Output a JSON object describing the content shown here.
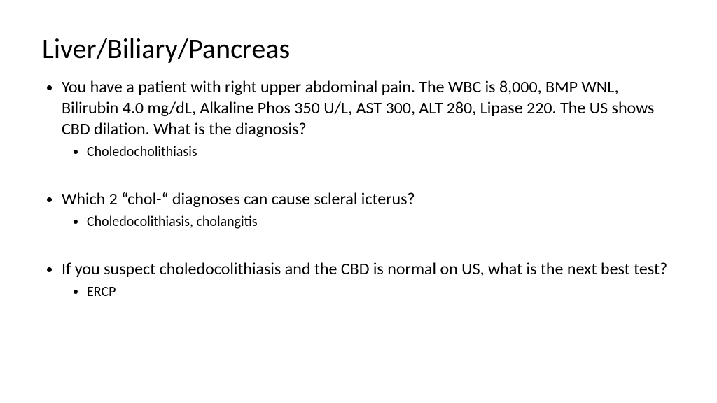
{
  "slide": {
    "title": "Liver/Biliary/Pancreas",
    "title_fontsize": 40,
    "title_color": "#000000",
    "background_color": "#ffffff",
    "body_fontsize": 24,
    "sub_fontsize": 20,
    "font_family": "Calibri",
    "bullets": [
      {
        "text": "You have a patient with right upper abdominal pain.  The WBC is 8,000, BMP WNL, Bilirubin 4.0 mg/dL, Alkaline Phos 350 U/L, AST 300, ALT 280, Lipase 220. The US shows CBD dilation. What is the diagnosis?",
        "sub": [
          "Choledocholithiasis"
        ]
      },
      {
        "text": "Which 2 “chol-“ diagnoses can cause scleral icterus?",
        "sub": [
          "Choledocolithiasis, cholangitis"
        ]
      },
      {
        "text": "If you suspect choledocolithiasis and the CBD is normal on US, what is the next best test?",
        "sub": [
          "ERCP"
        ]
      }
    ]
  }
}
